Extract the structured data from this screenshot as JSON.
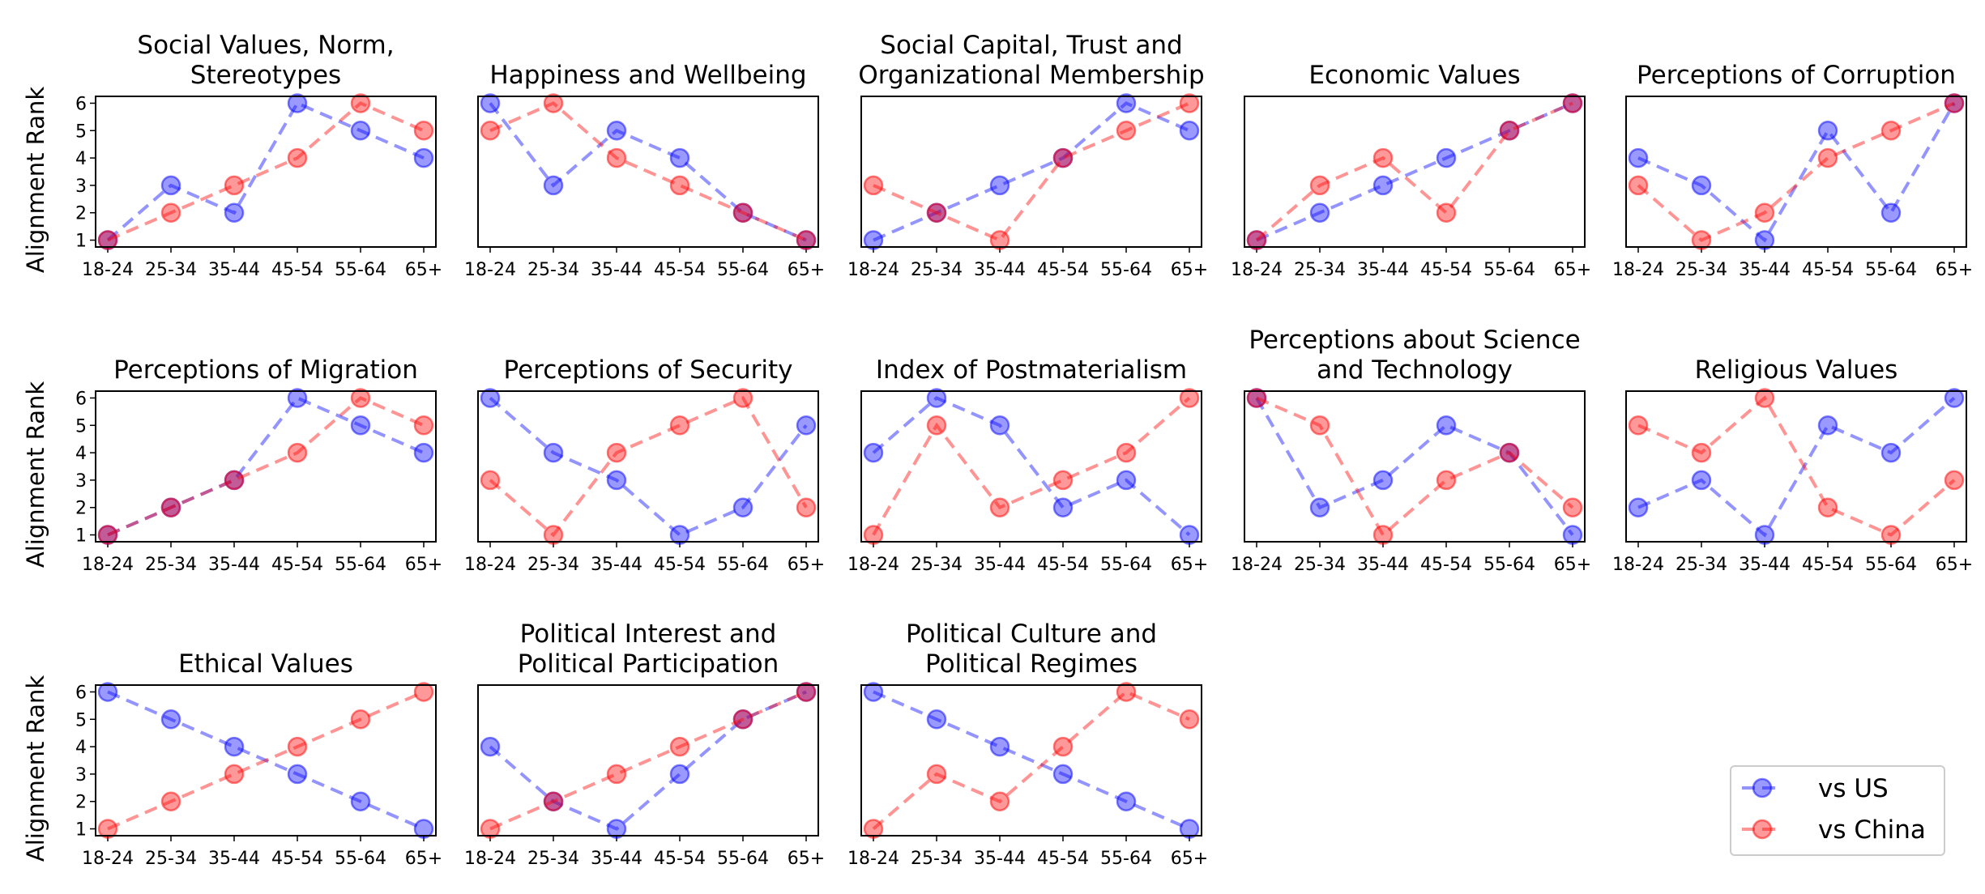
{
  "chart_data": {
    "type": "line",
    "ylabel": "Alignment Rank",
    "categories": [
      "18-24",
      "25-34",
      "35-44",
      "45-54",
      "55-64",
      "65+"
    ],
    "yticks": [
      1,
      2,
      3,
      4,
      5,
      6
    ],
    "ylim": [
      0.75,
      6.25
    ],
    "legend": {
      "placement": "bottom-right",
      "entries": [
        {
          "name": "vs US",
          "color": "#0000ff"
        },
        {
          "name": "vs China",
          "color": "#ff0000"
        }
      ]
    },
    "panels": [
      {
        "title": [
          "Social Values, Norm,",
          "Stereotypes"
        ],
        "us": [
          1,
          3,
          2,
          6,
          5,
          4
        ],
        "china": [
          1,
          2,
          3,
          4,
          6,
          5
        ]
      },
      {
        "title": [
          "Happiness and Wellbeing"
        ],
        "us": [
          6,
          3,
          5,
          4,
          2,
          1
        ],
        "china": [
          5,
          6,
          4,
          3,
          2,
          1
        ]
      },
      {
        "title": [
          "Social Capital, Trust and",
          "Organizational Membership"
        ],
        "us": [
          1,
          2,
          3,
          4,
          6,
          5
        ],
        "china": [
          3,
          2,
          1,
          4,
          5,
          6
        ]
      },
      {
        "title": [
          "Economic Values"
        ],
        "us": [
          1,
          2,
          3,
          4,
          5,
          6
        ],
        "china": [
          1,
          3,
          4,
          2,
          5,
          6
        ]
      },
      {
        "title": [
          "Perceptions of Corruption"
        ],
        "us": [
          4,
          3,
          1,
          5,
          2,
          6
        ],
        "china": [
          3,
          1,
          2,
          4,
          5,
          6
        ]
      },
      {
        "title": [
          "Perceptions of Migration"
        ],
        "us": [
          1,
          2,
          3,
          6,
          5,
          4
        ],
        "china": [
          1,
          2,
          3,
          4,
          6,
          5
        ]
      },
      {
        "title": [
          "Perceptions of Security"
        ],
        "us": [
          6,
          4,
          3,
          1,
          2,
          5
        ],
        "china": [
          3,
          1,
          4,
          5,
          6,
          2
        ]
      },
      {
        "title": [
          "Index of Postmaterialism"
        ],
        "us": [
          4,
          6,
          5,
          2,
          3,
          1
        ],
        "china": [
          1,
          5,
          2,
          3,
          4,
          6
        ]
      },
      {
        "title": [
          "Perceptions about Science",
          "and Technology"
        ],
        "us": [
          6,
          2,
          3,
          5,
          4,
          1
        ],
        "china": [
          6,
          5,
          1,
          3,
          4,
          2
        ]
      },
      {
        "title": [
          "Religious Values"
        ],
        "us": [
          2,
          3,
          1,
          5,
          4,
          6
        ],
        "china": [
          5,
          4,
          6,
          2,
          1,
          3
        ]
      },
      {
        "title": [
          "Ethical Values"
        ],
        "us": [
          6,
          5,
          4,
          3,
          2,
          1
        ],
        "china": [
          1,
          2,
          3,
          4,
          5,
          6
        ]
      },
      {
        "title": [
          "Political Interest and",
          "Political Participation"
        ],
        "us": [
          4,
          2,
          1,
          3,
          5,
          6
        ],
        "china": [
          1,
          2,
          3,
          4,
          5,
          6
        ]
      },
      {
        "title": [
          "Political Culture and",
          "Political Regimes"
        ],
        "us": [
          6,
          5,
          4,
          3,
          2,
          1
        ],
        "china": [
          1,
          3,
          2,
          4,
          6,
          5
        ]
      }
    ]
  }
}
